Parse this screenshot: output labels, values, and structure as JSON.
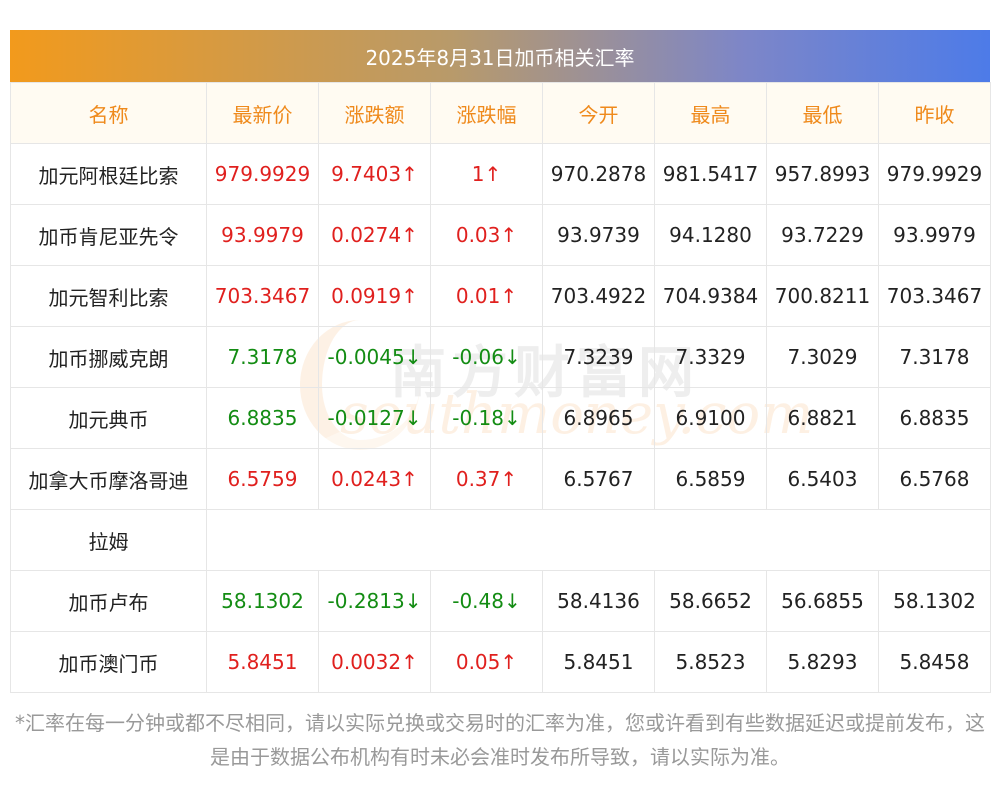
{
  "title": "2025年8月31日加币相关汇率",
  "headers": [
    "名称",
    "最新价",
    "涨跌额",
    "涨跌幅",
    "今开",
    "最高",
    "最低",
    "昨收"
  ],
  "rows": [
    {
      "name": "加元阿根廷比索",
      "latest": "979.9929",
      "change": "9.7403↑",
      "pct": "1↑",
      "open": "970.2878",
      "high": "981.5417",
      "low": "957.8993",
      "prev": "979.9929",
      "dir": "up"
    },
    {
      "name": "加币肯尼亚先令",
      "latest": "93.9979",
      "change": "0.0274↑",
      "pct": "0.03↑",
      "open": "93.9739",
      "high": "94.1280",
      "low": "93.7229",
      "prev": "93.9979",
      "dir": "up"
    },
    {
      "name": "加元智利比索",
      "latest": "703.3467",
      "change": "0.0919↑",
      "pct": "0.01↑",
      "open": "703.4922",
      "high": "704.9384",
      "low": "700.8211",
      "prev": "703.3467",
      "dir": "up"
    },
    {
      "name": "加币挪威克朗",
      "latest": "7.3178",
      "change": "-0.0045↓",
      "pct": "-0.06↓",
      "open": "7.3239",
      "high": "7.3329",
      "low": "7.3029",
      "prev": "7.3178",
      "dir": "down"
    },
    {
      "name": "加元典币",
      "latest": "6.8835",
      "change": "-0.0127↓",
      "pct": "-0.18↓",
      "open": "6.8965",
      "high": "6.9100",
      "low": "6.8821",
      "prev": "6.8835",
      "dir": "down"
    },
    {
      "name": "加拿大币摩洛哥迪",
      "latest": "6.5759",
      "change": "0.0243↑",
      "pct": "0.37↑",
      "open": "6.5767",
      "high": "6.5859",
      "low": "6.5403",
      "prev": "6.5768",
      "dir": "up"
    },
    {
      "name": "拉姆",
      "blank": true
    },
    {
      "name": "加币卢布",
      "latest": "58.1302",
      "change": "-0.2813↓",
      "pct": "-0.48↓",
      "open": "58.4136",
      "high": "58.6652",
      "low": "56.6855",
      "prev": "58.1302",
      "dir": "down"
    },
    {
      "name": "加币澳门币",
      "latest": "5.8451",
      "change": "0.0032↑",
      "pct": "0.05↑",
      "open": "5.8451",
      "high": "5.8523",
      "low": "5.8293",
      "prev": "5.8458",
      "dir": "up"
    }
  ],
  "footnote": "*汇率在每一分钟或都不尽相同，请以实际兑换或交易时的汇率为准，您或许看到有些数据延迟或提前发布，这是由于数据公布机构有时未必会准时发布所导致，请以实际为准。",
  "watermark": {
    "cn": "南方财富网",
    "en": "southmoney.com"
  },
  "colors": {
    "up": "#e0201e",
    "down": "#138c13",
    "header_text": "#ef8a1c"
  }
}
